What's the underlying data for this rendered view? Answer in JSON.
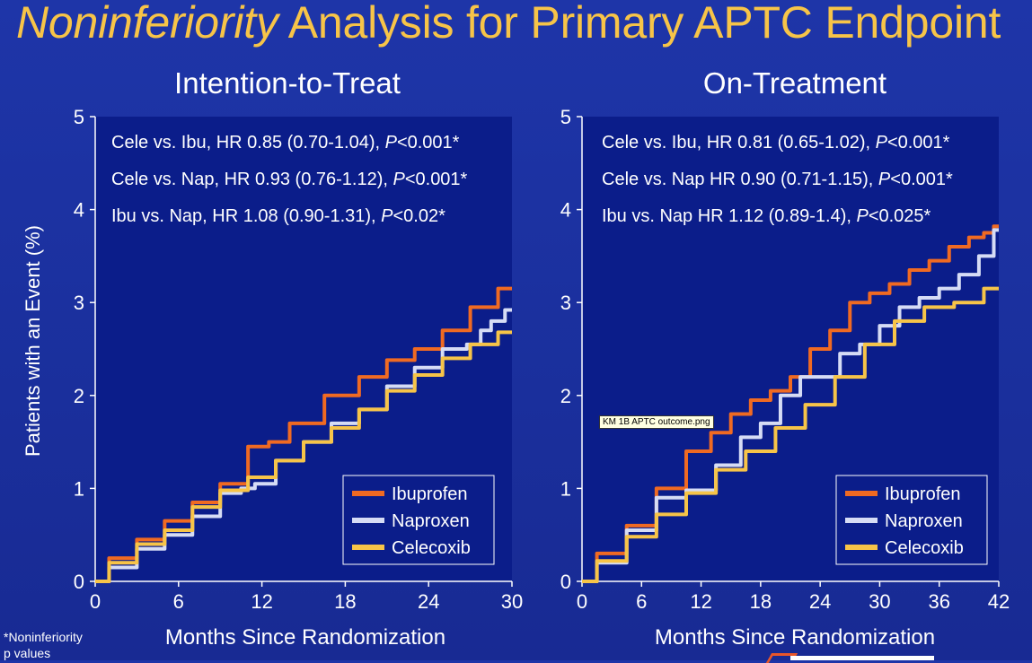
{
  "slide": {
    "title_italic": "Noninferiority",
    "title_rest": "Analysis for Primary APTC Endpoint",
    "footnote_line1": "*Noninferiority",
    "footnote_line2": "p values",
    "tooltip": "KM 1B APTC outcome.png"
  },
  "colors": {
    "background": "#1a2f9c",
    "panel": "#0b1d8a",
    "title": "#f7c448",
    "ibuprofen": "#f06a22",
    "naproxen": "#d6dcf5",
    "celecoxib": "#f7c448"
  },
  "chart_data": [
    {
      "type": "line",
      "title": "Intention-to-Treat",
      "xlabel": "Months Since Randomization",
      "ylabel": "Patients with an Event (%)",
      "xlim": [
        0,
        30
      ],
      "ylim": [
        0,
        5
      ],
      "xticks": [
        "0",
        "6",
        "12",
        "18",
        "24",
        "30"
      ],
      "yticks": [
        "0",
        "1",
        "2",
        "3",
        "4",
        "5"
      ],
      "annotations": [
        {
          "text": "Cele vs. Ibu, HR 0.85 (0.70-1.04), ",
          "p": "P",
          "rest": "<0.001*"
        },
        {
          "text": "Cele vs. Nap, HR 0.93 (0.76-1.12), ",
          "p": "P",
          "rest": "<0.001*"
        },
        {
          "text": "Ibu vs. Nap, HR 1.08 (0.90-1.31), ",
          "p": "P",
          "rest": "<0.02*"
        }
      ],
      "legend_position": "bottom-right",
      "series": [
        {
          "name": "Ibuprofen",
          "color": "#f06a22",
          "x": [
            0,
            2,
            4,
            6,
            8,
            10,
            12,
            13,
            15,
            18,
            20,
            22,
            24,
            26,
            28,
            30
          ],
          "y": [
            0,
            0.25,
            0.45,
            0.65,
            0.85,
            1.05,
            1.45,
            1.5,
            1.7,
            2.0,
            2.2,
            2.38,
            2.5,
            2.7,
            2.95,
            3.15
          ]
        },
        {
          "name": "Naproxen",
          "color": "#d6dcf5",
          "x": [
            0,
            2,
            4,
            6,
            8,
            10,
            11,
            12,
            14,
            16,
            18,
            20,
            22,
            24,
            26,
            27.5,
            28,
            29,
            30
          ],
          "y": [
            0,
            0.15,
            0.35,
            0.5,
            0.7,
            0.95,
            1.0,
            1.05,
            1.3,
            1.5,
            1.7,
            1.85,
            2.1,
            2.3,
            2.5,
            2.55,
            2.7,
            2.8,
            2.92
          ]
        },
        {
          "name": "Celecoxib",
          "color": "#f7c448",
          "x": [
            0,
            2,
            4,
            6,
            8,
            10,
            12,
            14,
            16,
            18,
            20,
            22,
            24,
            26,
            28,
            30
          ],
          "y": [
            0,
            0.2,
            0.4,
            0.55,
            0.8,
            0.98,
            1.12,
            1.3,
            1.5,
            1.65,
            1.85,
            2.05,
            2.22,
            2.4,
            2.55,
            2.68
          ]
        }
      ]
    },
    {
      "type": "line",
      "title": "On-Treatment",
      "xlabel": "Months Since Randomization",
      "ylabel": "Patients with an Event (%)",
      "xlim": [
        0,
        42
      ],
      "ylim": [
        0,
        5
      ],
      "xticks": [
        "0",
        "6",
        "12",
        "18",
        "24",
        "30",
        "36",
        "42"
      ],
      "yticks": [
        "0",
        "1",
        "2",
        "3",
        "4",
        "5"
      ],
      "annotations": [
        {
          "text": "Cele vs. Ibu, HR 0.81 (0.65-1.02), ",
          "p": "P",
          "rest": "<0.001*"
        },
        {
          "text": "Cele vs. Nap HR 0.90 (0.71-1.15), ",
          "p": "P",
          "rest": "<0.001*"
        },
        {
          "text": "Ibu vs. Nap HR 1.12 (0.89-1.4), ",
          "p": "P",
          "rest": "<0.025*"
        }
      ],
      "legend_position": "bottom-right",
      "series": [
        {
          "name": "Ibuprofen",
          "color": "#f06a22",
          "x": [
            0,
            3,
            6,
            9,
            12,
            14,
            16,
            18,
            20,
            22,
            24,
            26,
            28,
            30,
            32,
            34,
            36,
            38,
            40,
            41,
            42
          ],
          "y": [
            0,
            0.3,
            0.6,
            1.0,
            1.4,
            1.6,
            1.8,
            1.95,
            2.05,
            2.2,
            2.5,
            2.7,
            3.0,
            3.1,
            3.2,
            3.35,
            3.45,
            3.6,
            3.7,
            3.75,
            3.82
          ]
        },
        {
          "name": "Naproxen",
          "color": "#d6dcf5",
          "x": [
            0,
            3,
            6,
            9,
            12,
            15,
            17,
            19,
            21,
            23,
            25,
            27,
            29,
            31,
            33,
            35,
            37,
            39,
            41,
            42
          ],
          "y": [
            0,
            0.2,
            0.55,
            0.9,
            0.98,
            1.25,
            1.55,
            1.7,
            2.0,
            2.2,
            2.2,
            2.45,
            2.55,
            2.75,
            2.95,
            3.05,
            3.15,
            3.3,
            3.5,
            3.78
          ]
        },
        {
          "name": "Celecoxib",
          "color": "#f7c448",
          "x": [
            0,
            3,
            6,
            9,
            12,
            15,
            18,
            21,
            24,
            27,
            30,
            33,
            36,
            39,
            42
          ],
          "y": [
            0,
            0.22,
            0.48,
            0.72,
            0.95,
            1.2,
            1.4,
            1.65,
            1.9,
            2.2,
            2.55,
            2.8,
            2.95,
            3.0,
            3.15
          ]
        }
      ]
    }
  ]
}
